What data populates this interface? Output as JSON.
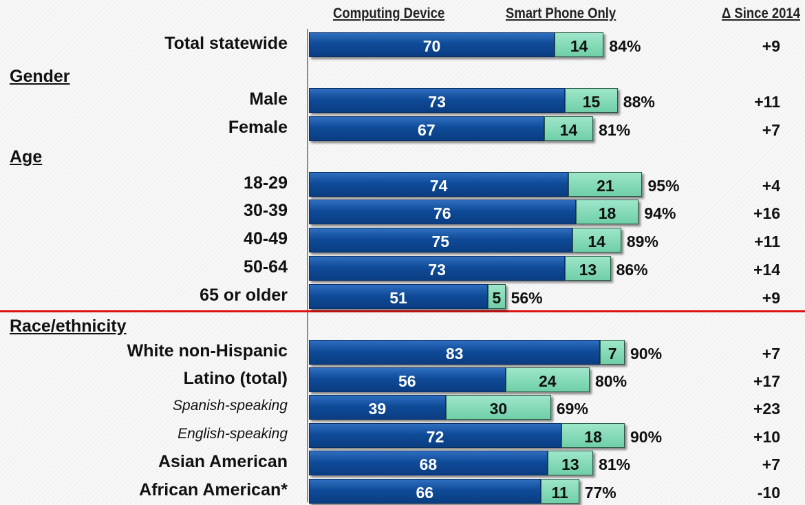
{
  "chart_data": {
    "type": "bar",
    "stacked": true,
    "orientation": "horizontal",
    "headers": {
      "computing_device": "Computing Device",
      "smart_phone_only": "Smart Phone Only",
      "delta": "Δ Since 2014"
    },
    "series": [
      {
        "name": "Computing Device",
        "color": "#0f4b98"
      },
      {
        "name": "Smart Phone Only",
        "color": "#7dd6b2"
      }
    ],
    "sections": [
      "Gender",
      "Age",
      "Race/ethnicity"
    ],
    "rows": [
      {
        "label": "Total statewide",
        "computing": 70,
        "phone": 14,
        "total": "84%",
        "delta": "+9"
      },
      {
        "label": "Male",
        "computing": 73,
        "phone": 15,
        "total": "88%",
        "delta": "+11"
      },
      {
        "label": "Female",
        "computing": 67,
        "phone": 14,
        "total": "81%",
        "delta": "+7"
      },
      {
        "label": "18-29",
        "computing": 74,
        "phone": 21,
        "total": "95%",
        "delta": "+4"
      },
      {
        "label": "30-39",
        "computing": 76,
        "phone": 18,
        "total": "94%",
        "delta": "+16"
      },
      {
        "label": "40-49",
        "computing": 75,
        "phone": 14,
        "total": "89%",
        "delta": "+11"
      },
      {
        "label": "50-64",
        "computing": 73,
        "phone": 13,
        "total": "86%",
        "delta": "+14"
      },
      {
        "label": "65 or older",
        "computing": 51,
        "phone": 5,
        "total": "56%",
        "delta": "+9"
      },
      {
        "label": "White non-Hispanic",
        "computing": 83,
        "phone": 7,
        "total": "90%",
        "delta": "+7"
      },
      {
        "label": "Latino (total)",
        "computing": 56,
        "phone": 24,
        "total": "80%",
        "delta": "+17"
      },
      {
        "label": "Spanish-speaking",
        "computing": 39,
        "phone": 30,
        "total": "69%",
        "delta": "+23",
        "italic": true
      },
      {
        "label": "English-speaking",
        "computing": 72,
        "phone": 18,
        "total": "90%",
        "delta": "+10",
        "italic": true
      },
      {
        "label": "Asian American",
        "computing": 68,
        "phone": 13,
        "total": "81%",
        "delta": "+7"
      },
      {
        "label": "African American*",
        "computing": 66,
        "phone": 11,
        "total": "77%",
        "delta": "-10"
      }
    ]
  }
}
